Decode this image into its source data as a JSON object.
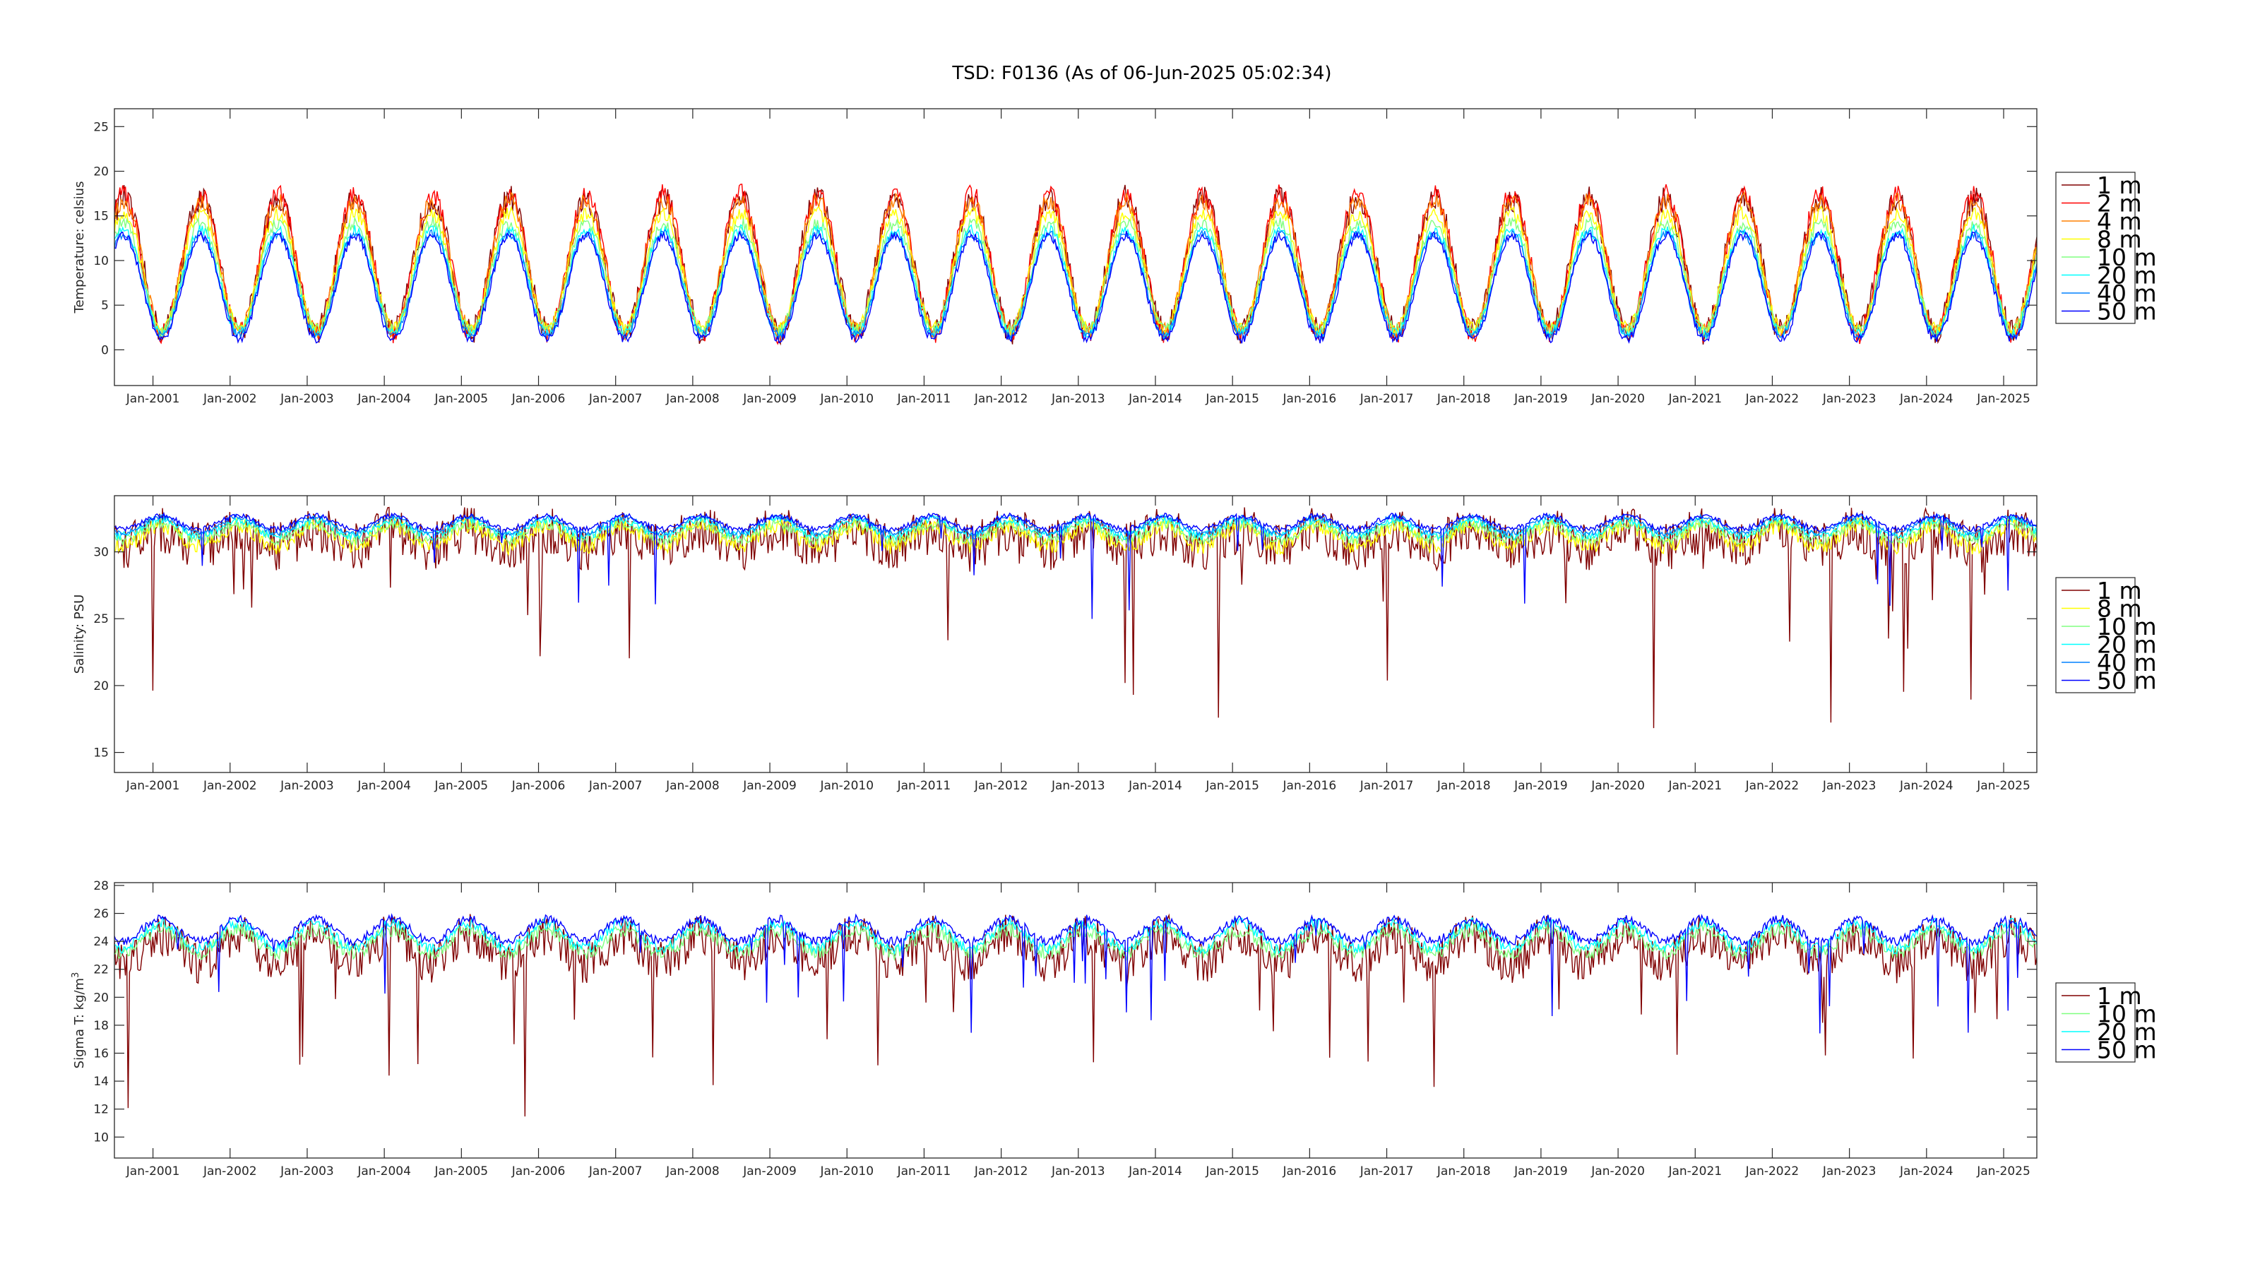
{
  "figure": {
    "title": "TSD: F0136 (As of 06-Jun-2025 05:02:34)"
  },
  "chart_data": [
    {
      "type": "line",
      "ylabel": "Temperature:  celsius",
      "xlim": [
        "2000-07-01",
        "2025-06-06"
      ],
      "ylim": [
        -4,
        27
      ],
      "yticks": [
        0,
        5,
        10,
        15,
        20,
        25
      ],
      "xticks": [
        "Jan-2001",
        "Jan-2002",
        "Jan-2003",
        "Jan-2004",
        "Jan-2005",
        "Jan-2006",
        "Jan-2007",
        "Jan-2008",
        "Jan-2009",
        "Jan-2010",
        "Jan-2011",
        "Jan-2012",
        "Jan-2013",
        "Jan-2014",
        "Jan-2015",
        "Jan-2016",
        "Jan-2017",
        "Jan-2018",
        "Jan-2019",
        "Jan-2020",
        "Jan-2021",
        "Jan-2022",
        "Jan-2023",
        "Jan-2024",
        "Jan-2025"
      ],
      "legend_placement": "right",
      "series": [
        {
          "name": "1 m",
          "color": "#800000",
          "mean": 9.5,
          "amp": 7.5,
          "noise": 1.5,
          "spikes": -0.8
        },
        {
          "name": "2 m",
          "color": "#ff0000",
          "mean": 9.6,
          "amp": 7.8,
          "noise": 1.2,
          "spikes": 0.6
        },
        {
          "name": "4 m",
          "color": "#ff8000",
          "mean": 9.4,
          "amp": 7.3,
          "noise": 1.0,
          "spikes": 0
        },
        {
          "name": "8 m",
          "color": "#ffff00",
          "mean": 8.8,
          "amp": 6.5,
          "noise": 0.8,
          "spikes": 0
        },
        {
          "name": "10 m",
          "color": "#80ff80",
          "mean": 8.2,
          "amp": 6.0,
          "noise": 0.7,
          "spikes": 0
        },
        {
          "name": "20 m",
          "color": "#00ffff",
          "mean": 7.6,
          "amp": 5.8,
          "noise": 0.6,
          "spikes": 0
        },
        {
          "name": "40 m",
          "color": "#0080ff",
          "mean": 7.3,
          "amp": 5.7,
          "noise": 0.5,
          "spikes": 0
        },
        {
          "name": "50 m",
          "color": "#0000ff",
          "mean": 7.0,
          "amp": 5.8,
          "noise": 0.5,
          "spikes": 0
        }
      ]
    },
    {
      "type": "line",
      "ylabel": "Salinity:  PSU",
      "xlim": [
        "2000-07-01",
        "2025-06-06"
      ],
      "ylim": [
        13.5,
        34.2
      ],
      "yticks": [
        15,
        20,
        25,
        30
      ],
      "xticks": [
        "Jan-2001",
        "Jan-2002",
        "Jan-2003",
        "Jan-2004",
        "Jan-2005",
        "Jan-2006",
        "Jan-2007",
        "Jan-2008",
        "Jan-2009",
        "Jan-2010",
        "Jan-2011",
        "Jan-2012",
        "Jan-2013",
        "Jan-2014",
        "Jan-2015",
        "Jan-2016",
        "Jan-2017",
        "Jan-2018",
        "Jan-2019",
        "Jan-2020",
        "Jan-2021",
        "Jan-2022",
        "Jan-2023",
        "Jan-2024",
        "Jan-2025"
      ],
      "legend_placement": "right",
      "series": [
        {
          "name": "1 m",
          "color": "#800000",
          "mean": 31.0,
          "amp": 0.6,
          "noise": 1.8,
          "spikes": -14
        },
        {
          "name": "8 m",
          "color": "#ffff00",
          "mean": 31.2,
          "amp": 0.8,
          "noise": 0.6,
          "spikes": 0
        },
        {
          "name": "10 m",
          "color": "#80ff80",
          "mean": 31.5,
          "amp": 0.6,
          "noise": 0.4,
          "spikes": 0
        },
        {
          "name": "20 m",
          "color": "#00ffff",
          "mean": 31.8,
          "amp": 0.6,
          "noise": 0.3,
          "spikes": 0
        },
        {
          "name": "40 m",
          "color": "#0080ff",
          "mean": 32.0,
          "amp": 0.6,
          "noise": 0.2,
          "spikes": 0
        },
        {
          "name": "50 m",
          "color": "#0000ff",
          "mean": 32.2,
          "amp": 0.5,
          "noise": 0.2,
          "spikes": -8
        }
      ]
    },
    {
      "type": "line",
      "ylabel": "Sigma T:  kg/m",
      "ylabel_sup": "3",
      "xlim": [
        "2000-07-01",
        "2025-06-06"
      ],
      "ylim": [
        8.5,
        28.2
      ],
      "yticks": [
        10,
        12,
        14,
        16,
        18,
        20,
        22,
        24,
        26,
        28
      ],
      "xticks": [
        "Jan-2001",
        "Jan-2002",
        "Jan-2003",
        "Jan-2004",
        "Jan-2005",
        "Jan-2006",
        "Jan-2007",
        "Jan-2008",
        "Jan-2009",
        "Jan-2010",
        "Jan-2011",
        "Jan-2012",
        "Jan-2013",
        "Jan-2014",
        "Jan-2015",
        "Jan-2016",
        "Jan-2017",
        "Jan-2018",
        "Jan-2019",
        "Jan-2020",
        "Jan-2021",
        "Jan-2022",
        "Jan-2023",
        "Jan-2024",
        "Jan-2025"
      ],
      "legend_placement": "right",
      "series": [
        {
          "name": "1 m",
          "color": "#800000",
          "mean": 23.5,
          "amp": 1.0,
          "noise": 1.5,
          "spikes": -12
        },
        {
          "name": "10 m",
          "color": "#80ff80",
          "mean": 24.0,
          "amp": 0.8,
          "noise": 0.5,
          "spikes": 0
        },
        {
          "name": "20 m",
          "color": "#00ffff",
          "mean": 24.4,
          "amp": 0.9,
          "noise": 0.4,
          "spikes": 0
        },
        {
          "name": "50 m",
          "color": "#0000ff",
          "mean": 24.8,
          "amp": 0.8,
          "noise": 0.3,
          "spikes": -7
        }
      ]
    }
  ]
}
